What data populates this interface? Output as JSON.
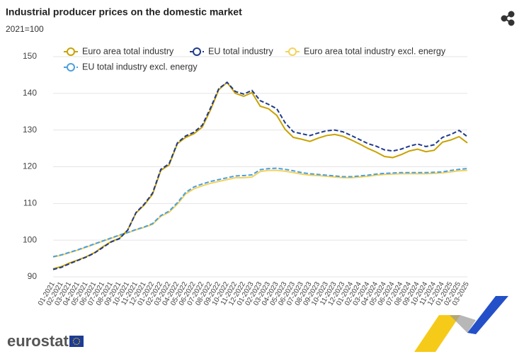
{
  "page": {
    "brand": "eurostat"
  },
  "chart_data": {
    "type": "line",
    "title": "Industrial producer prices on the domestic market",
    "subtitle": "2021=100",
    "categories": [
      "01-2021",
      "02-2021",
      "03-2021",
      "04-2021",
      "05-2021",
      "06-2021",
      "07-2021",
      "08-2021",
      "09-2021",
      "10-2021",
      "11-2021",
      "12-2021",
      "01-2022",
      "02-2022",
      "03-2022",
      "04-2022",
      "05-2022",
      "06-2022",
      "07-2022",
      "08-2022",
      "09-2022",
      "10-2022",
      "11-2022",
      "12-2022",
      "01-2023",
      "02-2023",
      "03-2023",
      "04-2023",
      "05-2023",
      "06-2023",
      "07-2023",
      "08-2023",
      "09-2023",
      "10-2023",
      "11-2023",
      "12-2023",
      "01-2024",
      "02-2024",
      "03-2024",
      "04-2024",
      "05-2024",
      "06-2024",
      "07-2024",
      "08-2024",
      "09-2024",
      "10-2024",
      "11-2024",
      "12-2024",
      "01-2025",
      "02-2025",
      "03-2025"
    ],
    "series": [
      {
        "name": "Euro area total industry",
        "color": "#c9a200",
        "dash": false,
        "values": [
          92.2,
          92.8,
          93.8,
          94.6,
          95.5,
          96.6,
          98.2,
          99.6,
          100.5,
          102.8,
          107.4,
          109.6,
          112.5,
          119.0,
          120.5,
          126.3,
          128.0,
          129.0,
          130.8,
          135.5,
          141.0,
          143.0,
          140.0,
          139.2,
          140.2,
          136.5,
          135.8,
          134.0,
          130.2,
          128.0,
          127.5,
          126.9,
          127.8,
          128.5,
          128.8,
          128.3,
          127.3,
          126.2,
          125.0,
          124.0,
          122.8,
          122.5,
          123.3,
          124.3,
          124.8,
          124.1,
          124.5,
          126.7,
          127.3,
          128.2,
          126.5
        ]
      },
      {
        "name": "EU total industry",
        "color": "#1f3a8a",
        "dash": true,
        "values": [
          92.0,
          92.6,
          93.6,
          94.5,
          95.4,
          96.5,
          98.0,
          99.5,
          100.4,
          102.7,
          107.5,
          109.8,
          112.8,
          119.3,
          120.8,
          126.5,
          128.4,
          129.4,
          131.3,
          136.0,
          141.3,
          143.0,
          140.5,
          139.8,
          140.8,
          138.0,
          137.0,
          135.8,
          132.0,
          129.5,
          129.0,
          128.5,
          129.2,
          129.8,
          130.0,
          129.5,
          128.5,
          127.4,
          126.3,
          125.6,
          124.6,
          124.3,
          124.8,
          125.6,
          126.2,
          125.5,
          126.0,
          128.0,
          128.8,
          129.9,
          128.2
        ]
      },
      {
        "name": "Euro area total industry excl. energy",
        "color": "#f2d35c",
        "dash": false,
        "values": [
          95.4,
          95.9,
          96.6,
          97.3,
          98.1,
          98.9,
          99.7,
          100.5,
          101.3,
          102.0,
          102.8,
          103.5,
          104.3,
          106.5,
          107.6,
          109.8,
          112.6,
          114.0,
          114.8,
          115.5,
          116.0,
          116.5,
          117.0,
          117.0,
          117.2,
          118.7,
          119.0,
          119.0,
          118.8,
          118.4,
          118.0,
          117.7,
          117.6,
          117.4,
          117.2,
          117.0,
          117.0,
          117.2,
          117.4,
          117.7,
          117.9,
          118.0,
          118.1,
          118.1,
          118.1,
          118.1,
          118.2,
          118.3,
          118.6,
          118.9,
          119.0
        ]
      },
      {
        "name": "EU total industry excl. energy",
        "color": "#4c9fe0",
        "dash": true,
        "values": [
          95.5,
          96.0,
          96.7,
          97.4,
          98.2,
          99.0,
          99.8,
          100.6,
          101.4,
          102.1,
          102.9,
          103.6,
          104.5,
          106.7,
          107.9,
          110.2,
          113.0,
          114.5,
          115.3,
          116.0,
          116.5,
          117.0,
          117.5,
          117.6,
          117.8,
          119.2,
          119.5,
          119.6,
          119.3,
          118.9,
          118.4,
          118.1,
          117.9,
          117.7,
          117.5,
          117.3,
          117.3,
          117.5,
          117.7,
          118.0,
          118.2,
          118.3,
          118.4,
          118.4,
          118.4,
          118.4,
          118.5,
          118.6,
          119.0,
          119.3,
          119.5
        ]
      }
    ],
    "ylim": [
      90,
      150
    ],
    "yticks": [
      90,
      100,
      110,
      120,
      130,
      140,
      150
    ],
    "grid": true
  }
}
